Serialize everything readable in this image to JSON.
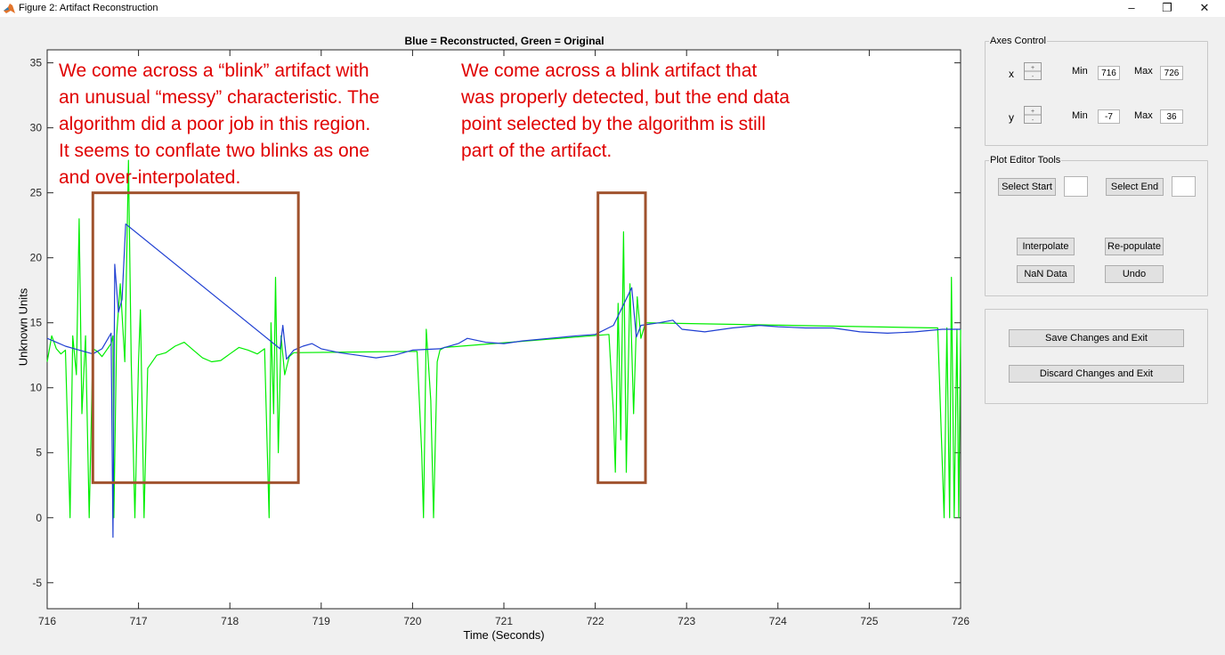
{
  "window": {
    "title": "Figure 2: Artifact Reconstruction",
    "controls": [
      "–",
      "❐",
      "✕"
    ]
  },
  "plot": {
    "title": "Blue = Reconstructed, Green = Original",
    "xlabel": "Time (Seconds)",
    "ylabel": "Unknown Units",
    "annotations": [
      "We come across a “blink” artifact with\nan unusual “messy” characteristic. The\nalgorithm did a poor job in this region.\nIt seems to conflate two blinks as one\nand over-interpolated.",
      "We come across a blink artifact that\nwas properly detected, but the end data\npoint selected by the algorithm is still\npart of the artifact."
    ],
    "annotation_color": "#e00000",
    "box_color": "#a0522d"
  },
  "chart_data": {
    "type": "line",
    "xlim": [
      716,
      726
    ],
    "ylim": [
      -7,
      36
    ],
    "xticks": [
      716,
      717,
      718,
      719,
      720,
      721,
      722,
      723,
      724,
      725,
      726
    ],
    "yticks": [
      -5,
      0,
      5,
      10,
      15,
      20,
      25,
      30,
      35
    ],
    "highlight_boxes": [
      {
        "x": [
          716.5,
          718.75
        ],
        "y": [
          2.7,
          25
        ]
      },
      {
        "x": [
          722.03,
          722.55
        ],
        "y": [
          2.7,
          25
        ]
      }
    ],
    "series": [
      {
        "color": "#00ee00",
        "points": [
          [
            716,
            12
          ],
          [
            716.05,
            14
          ],
          [
            716.1,
            13
          ],
          [
            716.15,
            12.6
          ],
          [
            716.2,
            12.9
          ],
          [
            716.25,
            0
          ],
          [
            716.28,
            14
          ],
          [
            716.32,
            11
          ],
          [
            716.35,
            23
          ],
          [
            716.38,
            8
          ],
          [
            716.42,
            14
          ],
          [
            716.46,
            0
          ],
          [
            716.5,
            13
          ],
          [
            716.55,
            12.8
          ],
          [
            716.6,
            12.4
          ],
          [
            716.7,
            13.4
          ],
          [
            716.72,
            14
          ],
          [
            716.73,
            0
          ],
          [
            716.76,
            14
          ],
          [
            716.8,
            18
          ],
          [
            716.85,
            12
          ],
          [
            716.89,
            27.5
          ],
          [
            716.92,
            12
          ],
          [
            716.96,
            0
          ],
          [
            717.0,
            12
          ],
          [
            717.02,
            16
          ],
          [
            717.06,
            0
          ],
          [
            717.1,
            11.5
          ],
          [
            717.2,
            12.5
          ],
          [
            717.3,
            12.7
          ],
          [
            717.4,
            13.2
          ],
          [
            717.5,
            13.5
          ],
          [
            717.6,
            12.9
          ],
          [
            717.7,
            12.3
          ],
          [
            717.8,
            12
          ],
          [
            717.9,
            12.1
          ],
          [
            718.0,
            12.6
          ],
          [
            718.1,
            13.1
          ],
          [
            718.2,
            12.9
          ],
          [
            718.3,
            12.6
          ],
          [
            718.38,
            13
          ],
          [
            718.41,
            5
          ],
          [
            718.43,
            0
          ],
          [
            718.45,
            15
          ],
          [
            718.48,
            8
          ],
          [
            718.5,
            18.5
          ],
          [
            718.53,
            5
          ],
          [
            718.56,
            14
          ],
          [
            718.6,
            11
          ],
          [
            718.65,
            12.4
          ],
          [
            718.7,
            12.7
          ],
          [
            720.05,
            12.8
          ],
          [
            720.1,
            5
          ],
          [
            720.12,
            0
          ],
          [
            720.15,
            14.5
          ],
          [
            720.2,
            9
          ],
          [
            720.23,
            0
          ],
          [
            720.27,
            12
          ],
          [
            720.3,
            12.9
          ],
          [
            720.35,
            13.1
          ],
          [
            722.15,
            14.1
          ],
          [
            722.2,
            8
          ],
          [
            722.22,
            3.5
          ],
          [
            722.25,
            16.5
          ],
          [
            722.28,
            6
          ],
          [
            722.31,
            22
          ],
          [
            722.34,
            3.5
          ],
          [
            722.38,
            18
          ],
          [
            722.42,
            8
          ],
          [
            722.46,
            17
          ],
          [
            722.5,
            13.8
          ],
          [
            722.55,
            15
          ],
          [
            725.75,
            14.6
          ],
          [
            725.82,
            0
          ],
          [
            725.85,
            14.6
          ],
          [
            725.88,
            0
          ],
          [
            725.9,
            18.5
          ],
          [
            725.93,
            0
          ],
          [
            725.96,
            14.5
          ],
          [
            725.98,
            0
          ],
          [
            726,
            14.5
          ]
        ]
      },
      {
        "color": "#1f3fd2",
        "points": [
          [
            716,
            13.8
          ],
          [
            716.1,
            13.5
          ],
          [
            716.2,
            13.2
          ],
          [
            716.3,
            13
          ],
          [
            716.4,
            12.8
          ],
          [
            716.5,
            12.6
          ],
          [
            716.6,
            13
          ],
          [
            716.7,
            14.2
          ],
          [
            716.72,
            -1.5
          ],
          [
            716.74,
            19.5
          ],
          [
            716.78,
            15.8
          ],
          [
            716.82,
            16.8
          ],
          [
            716.86,
            22.6
          ],
          [
            718.55,
            13
          ],
          [
            718.58,
            14.8
          ],
          [
            718.62,
            12.2
          ],
          [
            718.7,
            12.9
          ],
          [
            718.8,
            13.2
          ],
          [
            718.9,
            13.4
          ],
          [
            719.0,
            13
          ],
          [
            719.2,
            12.7
          ],
          [
            719.4,
            12.5
          ],
          [
            719.6,
            12.3
          ],
          [
            719.8,
            12.5
          ],
          [
            720.0,
            12.9
          ],
          [
            720.3,
            13
          ],
          [
            720.5,
            13.4
          ],
          [
            720.6,
            13.8
          ],
          [
            720.8,
            13.5
          ],
          [
            721.0,
            13.4
          ],
          [
            721.2,
            13.6
          ],
          [
            721.5,
            13.8
          ],
          [
            721.8,
            14
          ],
          [
            722.0,
            14.1
          ],
          [
            722.2,
            14.8
          ],
          [
            722.4,
            17.7
          ],
          [
            722.45,
            13.9
          ],
          [
            722.5,
            14.8
          ],
          [
            722.7,
            15
          ],
          [
            722.85,
            15.2
          ],
          [
            722.95,
            14.5
          ],
          [
            723.2,
            14.3
          ],
          [
            723.5,
            14.6
          ],
          [
            723.8,
            14.8
          ],
          [
            724.0,
            14.7
          ],
          [
            724.3,
            14.6
          ],
          [
            724.6,
            14.6
          ],
          [
            724.9,
            14.3
          ],
          [
            725.2,
            14.2
          ],
          [
            725.5,
            14.3
          ],
          [
            725.8,
            14.5
          ],
          [
            726,
            14.5
          ]
        ]
      }
    ]
  },
  "axes_control": {
    "title": "Axes Control",
    "x_label": "x",
    "x_min_label": "Min",
    "x_min": "716",
    "x_max_label": "Max",
    "x_max": "726",
    "y_label": "y",
    "y_min_label": "Min",
    "y_min": "-7",
    "y_max_label": "Max",
    "y_max": "36"
  },
  "plot_editor": {
    "title": "Plot Editor Tools",
    "select_start": "Select Start",
    "select_end": "Select End",
    "interpolate": "Interpolate",
    "repopulate": "Re-populate",
    "nan_data": "NaN Data",
    "undo": "Undo"
  },
  "actions": {
    "save": "Save Changes and Exit",
    "discard": "Discard Changes and Exit"
  }
}
